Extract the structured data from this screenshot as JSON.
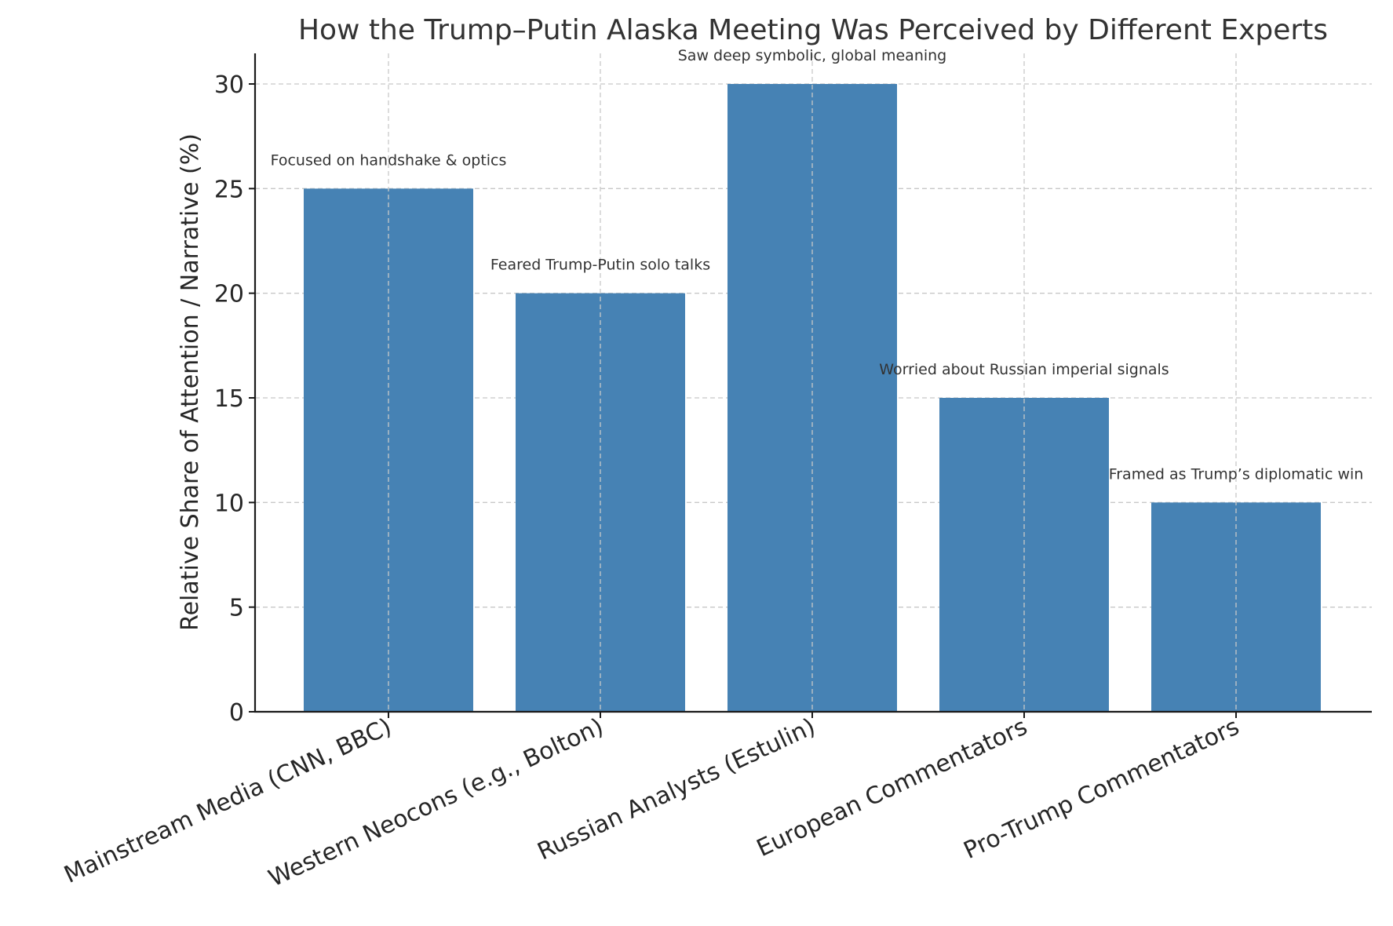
{
  "chart_data": {
    "type": "bar",
    "title": "How the Trump–Putin Alaska Meeting Was Perceived by Different Experts",
    "xlabel": "",
    "ylabel": "Relative Share of Attention / Narrative (%)",
    "categories": [
      "Mainstream Media (CNN, BBC)",
      "Western Neocons (e.g., Bolton)",
      "Russian Analysts (Estulin)",
      "European Commentators",
      "Pro-Trump Commentators"
    ],
    "values": [
      25,
      20,
      30,
      15,
      10
    ],
    "annotations": [
      "Focused on handshake & optics",
      "Feared Trump-Putin solo talks",
      "Saw deep symbolic, global meaning",
      "Worried about Russian imperial signals",
      "Framed as Trump’s diplomatic win"
    ],
    "ylim": [
      0,
      31.5
    ],
    "yticks": [
      0,
      5,
      10,
      15,
      20,
      25,
      30
    ],
    "grid": true,
    "bar_color": "#4682b4"
  }
}
